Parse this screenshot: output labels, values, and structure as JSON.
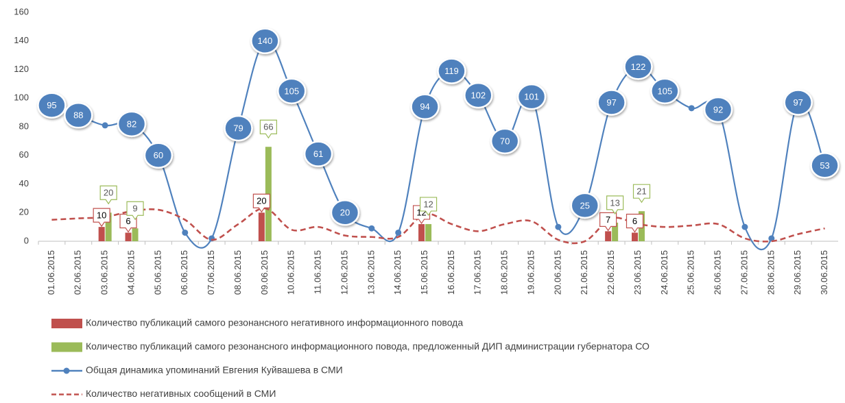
{
  "chart_data": {
    "type": "combo",
    "categories": [
      "01.06.2015",
      "02.06.2015",
      "03.06.2015",
      "04.06.2015",
      "05.06.2015",
      "06.06.2015",
      "07.06.2015",
      "08.06.2015",
      "09.06.2015",
      "10.06.2015",
      "11.06.2015",
      "12.06.2015",
      "13.06.2015",
      "14.06.2015",
      "15.06.2015",
      "16.06.2015",
      "17.06.2015",
      "18.06.2015",
      "19.06.2015",
      "20.06.2015",
      "21.06.2015",
      "22.06.2015",
      "23.06.2015",
      "24.06.2015",
      "25.06.2015",
      "26.06.2015",
      "27.06.2015",
      "28.06.2015",
      "29.06.2015",
      "30.06.2015"
    ],
    "ylim": [
      0,
      160
    ],
    "yticks": [
      0,
      20,
      40,
      60,
      80,
      100,
      120,
      140,
      160
    ],
    "grid": false,
    "series": [
      {
        "name": "Количество публикаций самого резонансного негативного информационного повода",
        "kind": "bar",
        "color": "#c0504d",
        "values": [
          null,
          null,
          10,
          6,
          null,
          null,
          null,
          null,
          20,
          null,
          null,
          null,
          null,
          null,
          12,
          null,
          null,
          null,
          null,
          null,
          null,
          7,
          6,
          null,
          null,
          null,
          null,
          null,
          null,
          null
        ]
      },
      {
        "name": "Количество публикаций самого резонансного информационного повода, предложенный ДИП администрации губернатора СО",
        "kind": "bar",
        "color": "#9bbb59",
        "values": [
          null,
          null,
          20,
          9,
          null,
          null,
          null,
          null,
          66,
          null,
          null,
          null,
          null,
          null,
          12,
          null,
          null,
          null,
          null,
          null,
          null,
          13,
          21,
          null,
          null,
          null,
          null,
          null,
          null,
          null
        ]
      },
      {
        "name": "Общая динамика упоминаний Евгения Куйвашева в СМИ",
        "kind": "line",
        "color": "#4f81bd",
        "values": [
          95,
          88,
          81,
          82,
          60,
          6,
          2,
          79,
          140,
          105,
          61,
          20,
          9,
          6,
          94,
          119,
          102,
          70,
          101,
          10,
          25,
          97,
          122,
          105,
          93,
          92,
          10,
          2,
          97,
          53
        ],
        "data_labels": [
          true,
          true,
          false,
          true,
          true,
          false,
          false,
          true,
          true,
          true,
          true,
          true,
          false,
          false,
          true,
          true,
          true,
          true,
          true,
          false,
          true,
          true,
          true,
          true,
          false,
          true,
          false,
          false,
          true,
          true
        ]
      },
      {
        "name": "Количество негативных сообщений в СМИ",
        "kind": "dashed",
        "color": "#c0504d",
        "values": [
          15,
          16,
          17,
          21,
          22,
          15,
          1,
          12,
          23,
          8,
          10,
          4,
          3,
          3,
          19,
          12,
          7,
          12,
          14,
          1,
          0,
          16,
          12,
          10,
          11,
          12,
          2,
          0,
          5,
          9
        ]
      }
    ]
  }
}
